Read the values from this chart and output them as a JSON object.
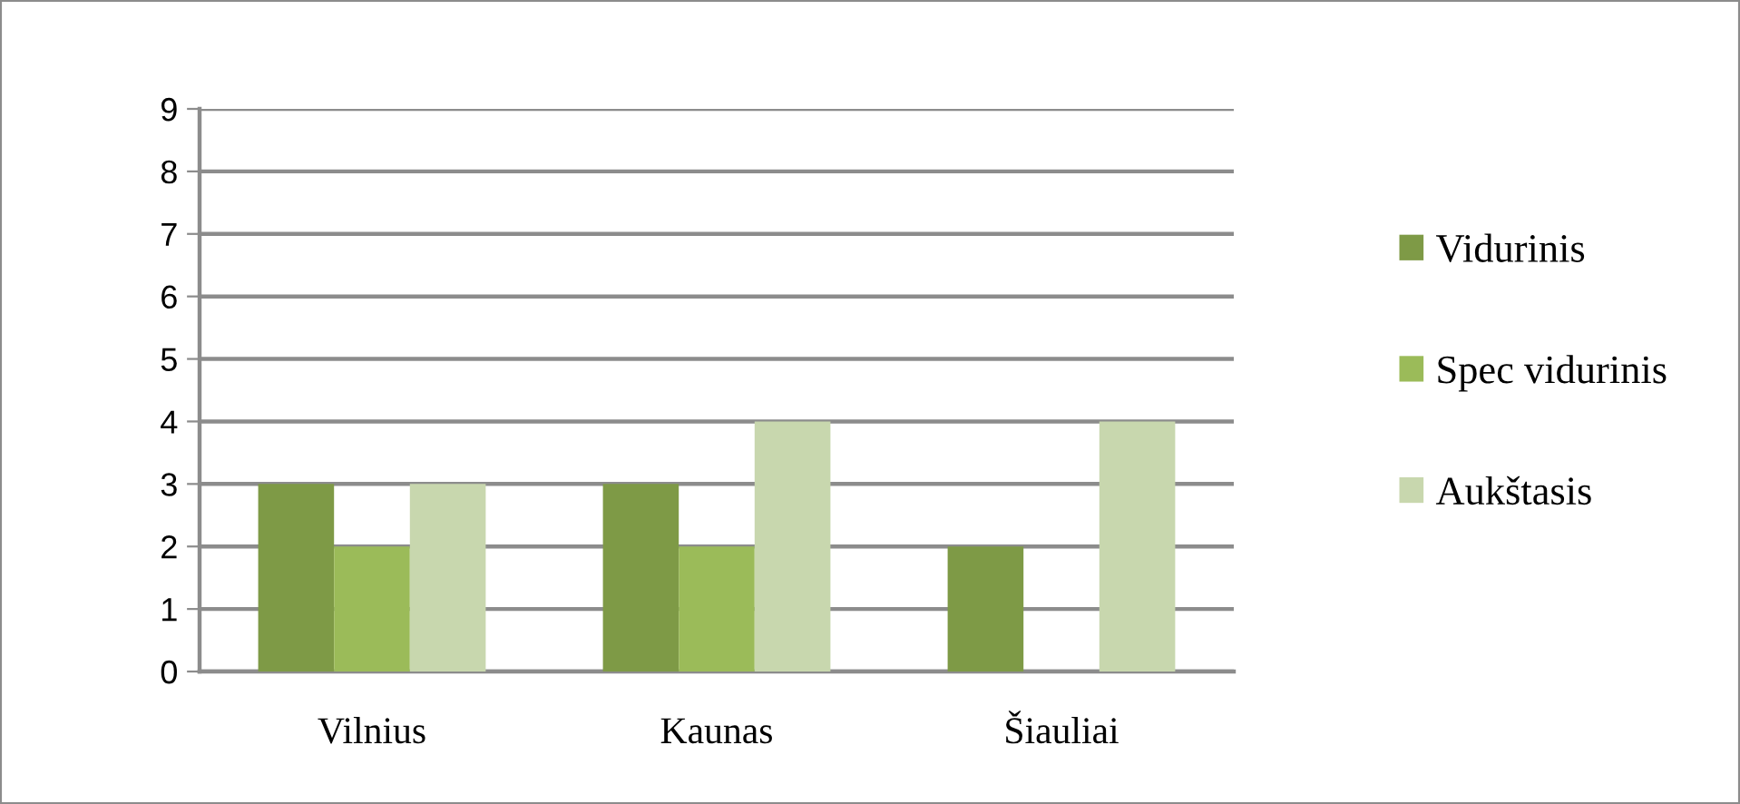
{
  "chart_data": {
    "type": "bar",
    "categories": [
      "Vilnius",
      "Kaunas",
      "Šiauliai"
    ],
    "series": [
      {
        "name": "Vidurinis",
        "color": "#7e9a46",
        "values": [
          3,
          3,
          2
        ]
      },
      {
        "name": "Spec vidurinis",
        "color": "#9bbb59",
        "values": [
          2,
          2,
          0
        ]
      },
      {
        "name": "Aukštasis",
        "color": "#c8d7ae",
        "values": [
          3,
          4,
          4
        ]
      }
    ],
    "ylim": [
      0,
      9
    ],
    "yticks": [
      0,
      1,
      2,
      3,
      4,
      5,
      6,
      7,
      8,
      9
    ],
    "grid": "y",
    "legend": "right"
  }
}
